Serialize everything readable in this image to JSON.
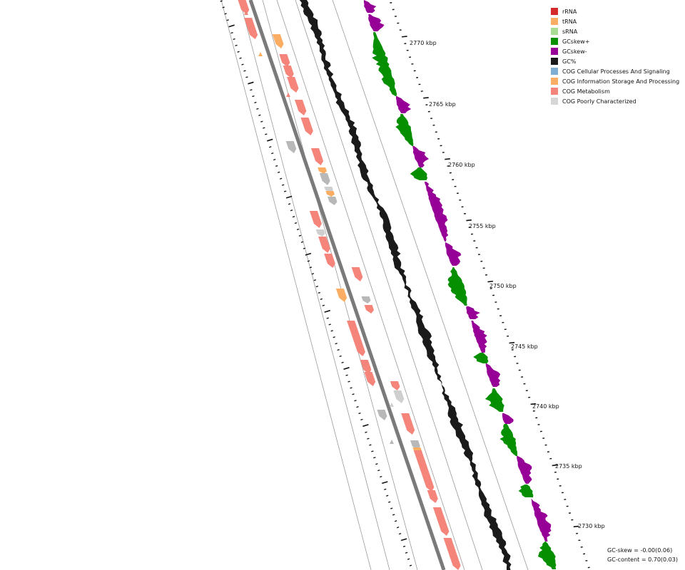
{
  "legend": [
    {
      "label": "rRNA",
      "color": "#d42a2a"
    },
    {
      "label": "tRNA",
      "color": "#fbae63"
    },
    {
      "label": "sRNA",
      "color": "#a8db94"
    },
    {
      "label": "GCskew+",
      "color": "#068f00"
    },
    {
      "label": "GCskew-",
      "color": "#960096"
    },
    {
      "label": "GC%",
      "color": "#1a1a1a"
    },
    {
      "label": "COG Cellular Processes And Signaling",
      "color": "#7eaed4"
    },
    {
      "label": "COG Information Storage And Processing",
      "color": "#fbae63"
    },
    {
      "label": "COG Metabolism",
      "color": "#f5847a"
    },
    {
      "label": "COG Poorly Characterized",
      "color": "#d6d6d6"
    }
  ],
  "kbp_labels": [
    "2770 kbp",
    "2765 kbp",
    "2760 kbp",
    "2755 kbp",
    "2750 kbp",
    "2745 kbp",
    "2740 kbp",
    "2735 kbp",
    "2730 kbp"
  ],
  "stats": {
    "gc_skew": "GC-skew = -0.00(0.06)",
    "gc_content": "GC-content = 0.70(0.03)"
  }
}
